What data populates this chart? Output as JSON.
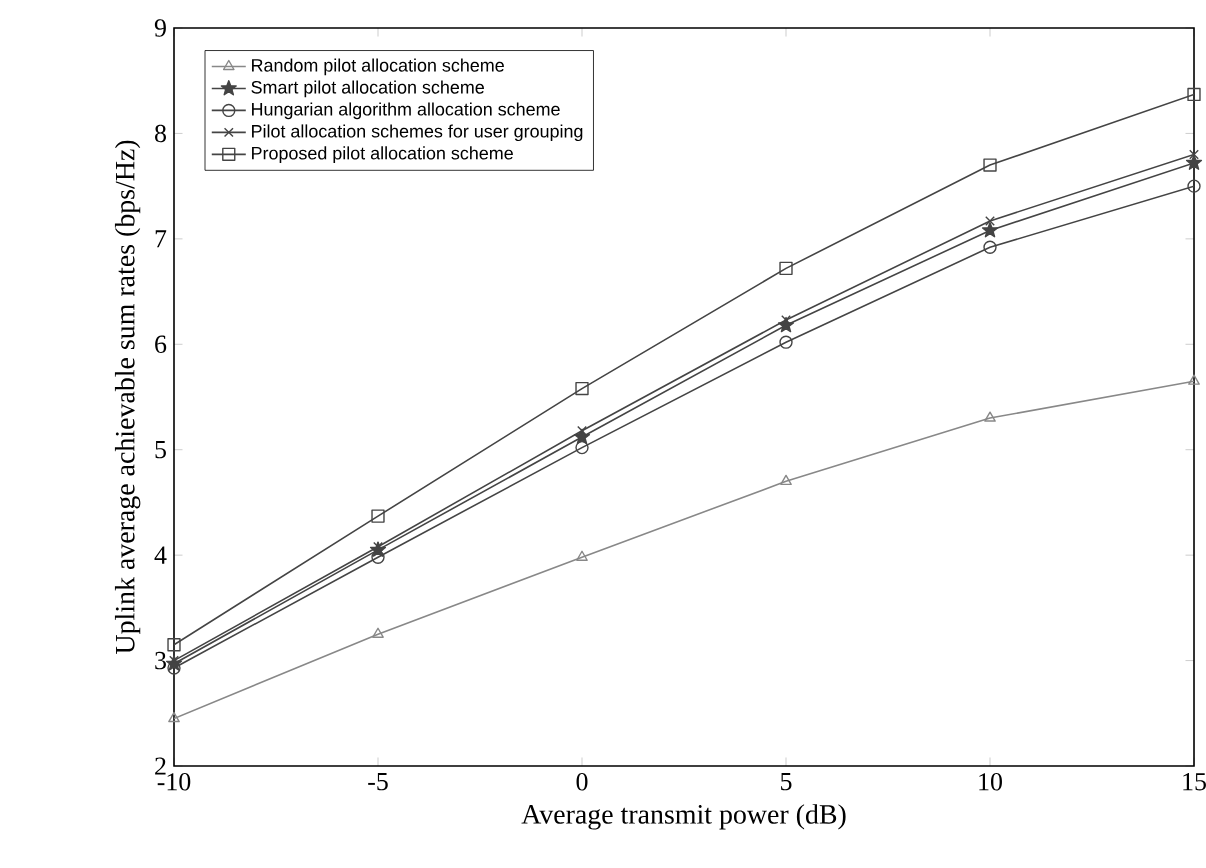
{
  "chart_data": {
    "type": "line",
    "xlabel": "Average transmit power (dB)",
    "ylabel": "Uplink average achievable sum rates (bps/Hz)",
    "x": [
      -10,
      -5,
      0,
      5,
      10,
      15
    ],
    "series": [
      {
        "name": "Random pilot allocation scheme",
        "color": "#888888",
        "marker": "triangle",
        "values": [
          2.45,
          3.25,
          3.98,
          4.7,
          5.3,
          5.65
        ]
      },
      {
        "name": "Smart pilot allocation scheme",
        "color": "#444444",
        "marker": "star",
        "values": [
          2.97,
          4.05,
          5.12,
          6.18,
          7.08,
          7.72
        ]
      },
      {
        "name": "Hungarian algorithm allocation scheme",
        "color": "#444444",
        "marker": "circle",
        "values": [
          2.93,
          3.98,
          5.02,
          6.02,
          6.92,
          7.5
        ]
      },
      {
        "name": "Pilot allocation schemes for user grouping",
        "color": "#444444",
        "marker": "cross",
        "values": [
          3.0,
          4.08,
          5.18,
          6.23,
          7.17,
          7.8
        ]
      },
      {
        "name": "Proposed pilot allocation scheme",
        "color": "#444444",
        "marker": "square",
        "values": [
          3.15,
          4.37,
          5.58,
          6.72,
          7.7,
          8.37
        ]
      }
    ],
    "xlim": [
      -10,
      15
    ],
    "ylim": [
      2,
      9
    ],
    "xticks": [
      -10,
      -5,
      0,
      5,
      10,
      15
    ],
    "yticks": [
      2,
      3,
      4,
      5,
      6,
      7,
      8,
      9
    ],
    "legend": "top left",
    "grid": false,
    "line_style": "solid"
  }
}
